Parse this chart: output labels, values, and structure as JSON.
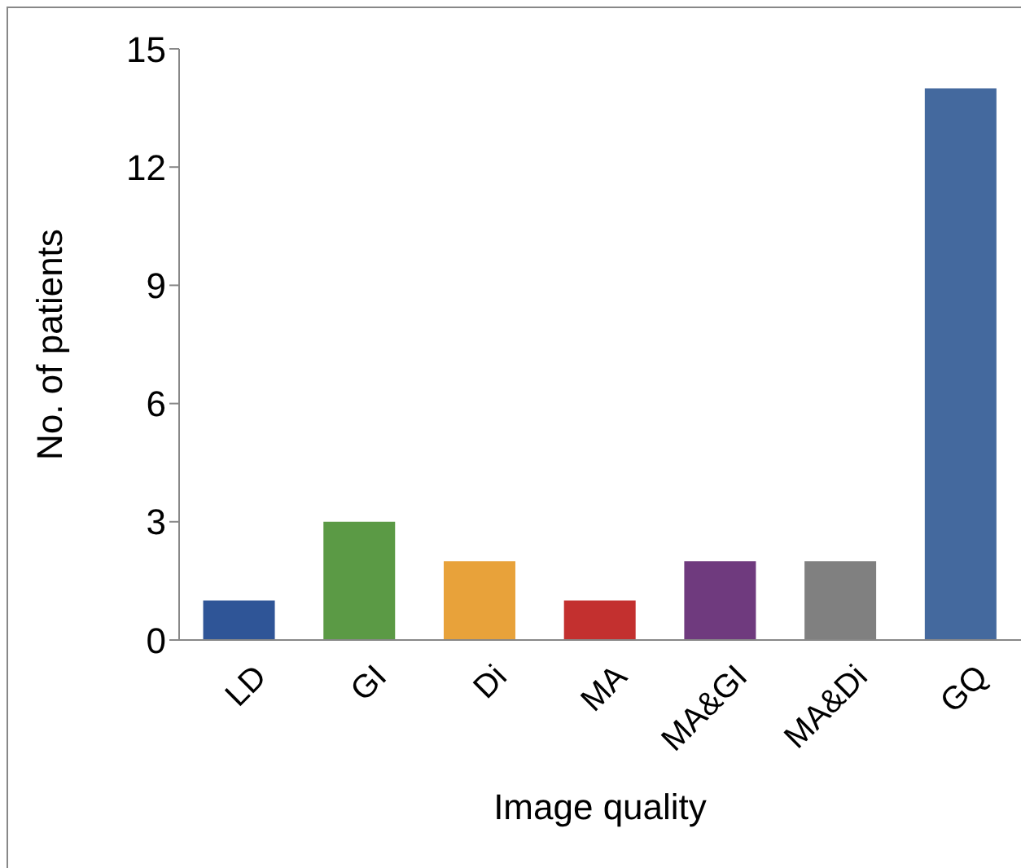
{
  "chart_data": {
    "type": "bar",
    "xlabel": "Image quality",
    "ylabel": "No. of patients",
    "categories": [
      "LD",
      "GI",
      "Di",
      "MA",
      "MA&GI",
      "MA&Di",
      "GQ"
    ],
    "values": [
      1,
      3,
      2,
      1,
      2,
      2,
      14
    ],
    "colors": [
      "#2f5597",
      "#5b9a45",
      "#e8a23a",
      "#c3302f",
      "#6f3a7e",
      "#808080",
      "#44699e"
    ],
    "ylim": [
      0,
      15
    ],
    "yticks": [
      0,
      3,
      6,
      9,
      12,
      15
    ],
    "grid": false,
    "legend": false
  }
}
